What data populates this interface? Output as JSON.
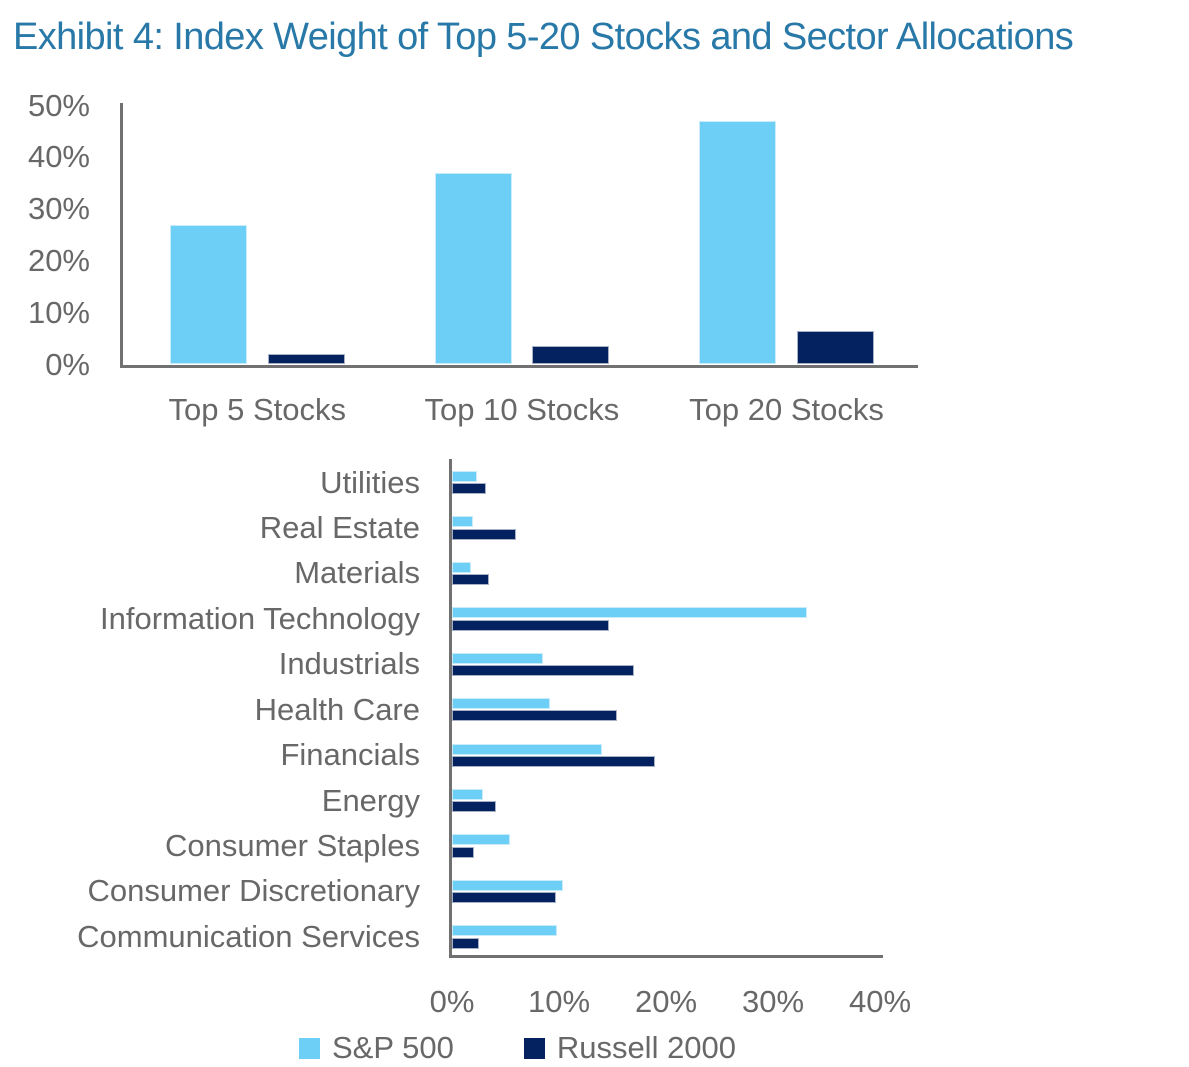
{
  "title": "Exhibit 4: Index Weight of Top 5-20 Stocks and Sector Allocations",
  "colors": {
    "sp500": "#6DCFF6",
    "russell2000": "#042260",
    "title_text": "#2878A8",
    "label_text": "#686868",
    "axis_line": "#717171"
  },
  "legend": {
    "items": [
      {
        "label": "S&P 500",
        "series": "sp500"
      },
      {
        "label": "Russell 2000",
        "series": "russell2000"
      }
    ]
  },
  "chart_data": [
    {
      "type": "bar",
      "orientation": "vertical",
      "title": "",
      "xlabel": "",
      "ylabel": "",
      "grid": false,
      "legend_position": "shared-bottom",
      "categories": [
        "Top 5 Stocks",
        "Top 10 Stocks",
        "Top 20 Stocks"
      ],
      "series": [
        {
          "name": "S&P 500",
          "color_key": "sp500",
          "values": [
            27,
            37,
            47
          ]
        },
        {
          "name": "Russell 2000",
          "color_key": "russell2000",
          "values": [
            2,
            3.5,
            6.5
          ]
        }
      ],
      "ylim": [
        0,
        50
      ],
      "ytick_values": [
        0,
        10,
        20,
        30,
        40,
        50
      ],
      "ytick_labels": [
        "0%",
        "10%",
        "20%",
        "30%",
        "40%",
        "50%"
      ]
    },
    {
      "type": "bar",
      "orientation": "horizontal",
      "title": "",
      "xlabel": "",
      "ylabel": "",
      "grid": false,
      "legend_position": "shared-bottom",
      "categories": [
        "Utilities",
        "Real Estate",
        "Materials",
        "Information Technology",
        "Industrials",
        "Health Care",
        "Financials",
        "Energy",
        "Consumer Staples",
        "Consumer Discretionary",
        "Communication Services"
      ],
      "series": [
        {
          "name": "S&P 500",
          "color_key": "sp500",
          "values": [
            2.3,
            2.0,
            1.8,
            33.2,
            8.5,
            9.2,
            14.0,
            2.9,
            5.4,
            10.4,
            9.8
          ]
        },
        {
          "name": "Russell 2000",
          "color_key": "russell2000",
          "values": [
            3.2,
            6.0,
            3.5,
            14.7,
            17.0,
            15.4,
            19.0,
            4.1,
            2.1,
            9.7,
            2.5
          ]
        }
      ],
      "xlim": [
        0,
        40
      ],
      "xtick_values": [
        0,
        10,
        20,
        30,
        40
      ],
      "xtick_labels": [
        "0%",
        "10%",
        "20%",
        "30%",
        "40%"
      ]
    }
  ]
}
